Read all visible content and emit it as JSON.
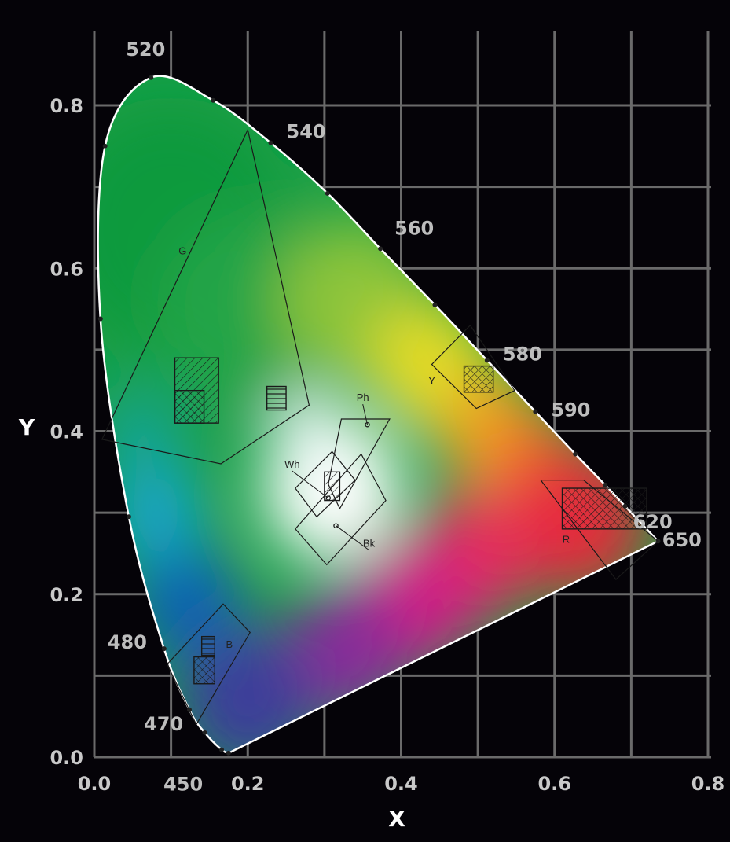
{
  "chart_data": {
    "type": "scatter",
    "title": "",
    "xlabel": "X",
    "ylabel": "Y",
    "xlim": [
      0.0,
      0.8
    ],
    "ylim": [
      0.0,
      0.85
    ],
    "xticks": [
      "0.0",
      "0.2",
      "0.4",
      "0.6",
      "0.8"
    ],
    "yticks": [
      "0.0",
      "0.2",
      "0.4",
      "0.6",
      "0.8"
    ],
    "xtick_values": [
      0.0,
      0.2,
      0.4,
      0.6,
      0.8
    ],
    "ytick_values": [
      0.0,
      0.2,
      0.4,
      0.6,
      0.8
    ],
    "grid": true,
    "background_color": "#050308",
    "grid_color": "#6a6a6a",
    "minor_gridlines": {
      "x": [
        0.1,
        0.3,
        0.5,
        0.7
      ],
      "y": [
        0.1,
        0.3,
        0.5,
        0.7
      ]
    },
    "spectral_locus": {
      "name": "spectral locus",
      "points": [
        [
          0.175,
          0.005
        ],
        [
          0.166,
          0.009
        ],
        [
          0.144,
          0.03
        ],
        [
          0.124,
          0.058
        ],
        [
          0.091,
          0.133
        ],
        [
          0.045,
          0.295
        ],
        [
          0.008,
          0.538
        ],
        [
          0.014,
          0.75
        ],
        [
          0.074,
          0.834
        ],
        [
          0.155,
          0.806
        ],
        [
          0.23,
          0.754
        ],
        [
          0.304,
          0.692
        ],
        [
          0.373,
          0.624
        ],
        [
          0.444,
          0.555
        ],
        [
          0.512,
          0.487
        ],
        [
          0.575,
          0.424
        ],
        [
          0.627,
          0.372
        ],
        [
          0.666,
          0.334
        ],
        [
          0.692,
          0.308
        ],
        [
          0.735,
          0.265
        ]
      ]
    },
    "wavelength_labels": [
      {
        "label": "520",
        "x": 0.074,
        "y": 0.834
      },
      {
        "label": "540",
        "x": 0.23,
        "y": 0.754
      },
      {
        "label": "560",
        "x": 0.373,
        "y": 0.624
      },
      {
        "label": "580",
        "x": 0.512,
        "y": 0.487
      },
      {
        "label": "590",
        "x": 0.575,
        "y": 0.424
      },
      {
        "label": "620",
        "x": 0.692,
        "y": 0.308
      },
      {
        "label": "650",
        "x": 0.726,
        "y": 0.274
      },
      {
        "label": "480",
        "x": 0.091,
        "y": 0.133
      },
      {
        "label": "470",
        "x": 0.124,
        "y": 0.058
      },
      {
        "label": "450",
        "x": 0.166,
        "y": 0.009
      }
    ],
    "color_regions": [
      {
        "label": "G",
        "x": 0.115,
        "y": 0.617,
        "polygon": [
          [
            0.01,
            0.39
          ],
          [
            0.165,
            0.36
          ],
          [
            0.28,
            0.432
          ],
          [
            0.2,
            0.77
          ]
        ]
      },
      {
        "label": "Y",
        "x": 0.44,
        "y": 0.458,
        "polygon": [
          [
            0.44,
            0.482
          ],
          [
            0.49,
            0.53
          ],
          [
            0.548,
            0.45
          ],
          [
            0.498,
            0.428
          ]
        ]
      },
      {
        "label": "R",
        "x": 0.615,
        "y": 0.263,
        "polygon": [
          [
            0.582,
            0.34
          ],
          [
            0.638,
            0.34
          ],
          [
            0.735,
            0.265
          ],
          [
            0.68,
            0.218
          ]
        ]
      },
      {
        "label": "B",
        "x": 0.176,
        "y": 0.134,
        "polygon": [
          [
            0.095,
            0.114
          ],
          [
            0.168,
            0.188
          ],
          [
            0.203,
            0.153
          ],
          [
            0.133,
            0.04
          ]
        ]
      },
      {
        "label": "Ph",
        "x": 0.35,
        "y": 0.437,
        "polygon": [
          [
            0.322,
            0.415
          ],
          [
            0.385,
            0.415
          ],
          [
            0.32,
            0.305
          ],
          [
            0.305,
            0.335
          ]
        ]
      },
      {
        "label": "Wh",
        "x": 0.258,
        "y": 0.355,
        "polygon": [
          [
            0.29,
            0.295
          ],
          [
            0.34,
            0.34
          ],
          [
            0.31,
            0.375
          ],
          [
            0.262,
            0.33
          ]
        ]
      },
      {
        "label": "Bk",
        "x": 0.358,
        "y": 0.258,
        "polygon": [
          [
            0.262,
            0.28
          ],
          [
            0.348,
            0.372
          ],
          [
            0.38,
            0.315
          ],
          [
            0.303,
            0.236
          ]
        ]
      }
    ],
    "marker_points": [
      {
        "label": "Ph",
        "x": 0.356,
        "y": 0.408
      },
      {
        "label": "Bk",
        "x": 0.315,
        "y": 0.284
      },
      {
        "label": "Wh",
        "x": 0.305,
        "y": 0.318
      }
    ],
    "colorimetric_patches": [
      {
        "region": "G",
        "rect": [
          [
            0.105,
            0.41
          ],
          [
            0.162,
            0.49
          ]
        ],
        "hatch": "diagonal"
      },
      {
        "region": "G",
        "rect": [
          [
            0.105,
            0.41
          ],
          [
            0.143,
            0.45
          ]
        ],
        "hatch": "cross"
      },
      {
        "region": "G",
        "rect": [
          [
            0.225,
            0.426
          ],
          [
            0.25,
            0.455
          ]
        ],
        "hatch": "horizontal"
      },
      {
        "region": "Y",
        "rect": [
          [
            0.482,
            0.448
          ],
          [
            0.52,
            0.48
          ]
        ],
        "hatch": "cross"
      },
      {
        "region": "R",
        "rect": [
          [
            0.61,
            0.28
          ],
          [
            0.72,
            0.33
          ]
        ],
        "hatch": "cross"
      },
      {
        "region": "B",
        "rect": [
          [
            0.13,
            0.09
          ],
          [
            0.157,
            0.123
          ]
        ],
        "hatch": "cross"
      },
      {
        "region": "B",
        "rect": [
          [
            0.14,
            0.125
          ],
          [
            0.157,
            0.148
          ]
        ],
        "hatch": "horizontal"
      },
      {
        "region": "Wh",
        "rect": [
          [
            0.3,
            0.315
          ],
          [
            0.32,
            0.35
          ]
        ],
        "hatch": "diagonal"
      }
    ]
  }
}
